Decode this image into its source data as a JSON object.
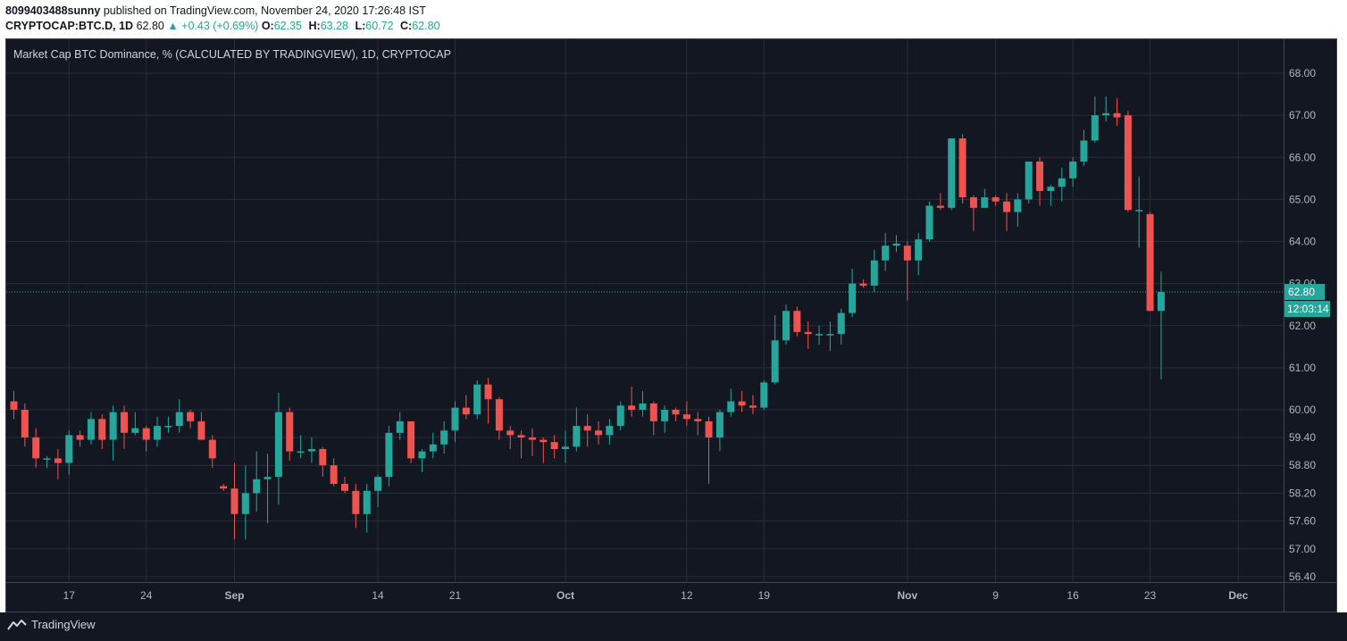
{
  "header": {
    "user": "8099403488sunny",
    "published": "published on TradingView.com, November 24, 2020 17:26:48 IST",
    "symbol": "CRYPTOCAP:BTC.D, 1D",
    "last": "62.80",
    "change": "▲ +0.43 (+0.69%)",
    "o_label": "O:",
    "o_value": "62.35",
    "h_label": "H:",
    "h_value": "63.28",
    "l_label": "L:",
    "l_value": "60.72",
    "c_label": "C:",
    "c_value": "62.80"
  },
  "chart_data": {
    "type": "candlestick",
    "title": "Market Cap BTC Dominance, % (CALCULATED BY TRADINGVIEW), 1D, CRYPTOCAP",
    "ylim": [
      56.2,
      68.3
    ],
    "y_ticks": [
      "68.00",
      "67.00",
      "66.00",
      "65.00",
      "64.00",
      "63.00",
      "62.00",
      "61.00",
      "60.00",
      "59.40",
      "58.80",
      "58.20",
      "57.60",
      "57.00",
      "56.40"
    ],
    "x_ticks": [
      {
        "label": "17",
        "index": 5
      },
      {
        "label": "24",
        "index": 12
      },
      {
        "label": "Sep",
        "index": 20
      },
      {
        "label": "14",
        "index": 33
      },
      {
        "label": "21",
        "index": 40
      },
      {
        "label": "Oct",
        "index": 50
      },
      {
        "label": "12",
        "index": 61
      },
      {
        "label": "19",
        "index": 68
      },
      {
        "label": "Nov",
        "index": 81
      },
      {
        "label": "9",
        "index": 89
      },
      {
        "label": "16",
        "index": 96
      },
      {
        "label": "23",
        "index": 103
      },
      {
        "label": "Dec",
        "index": 111
      }
    ],
    "last_price_label": "62.80",
    "countdown_label": "12:03:14",
    "up_color": "#26a69a",
    "down_color": "#ef5350",
    "grid": true,
    "ohlc": [
      [
        60.2,
        60.45,
        59.8,
        60.0
      ],
      [
        60.0,
        60.15,
        59.2,
        59.4
      ],
      [
        59.4,
        59.6,
        58.75,
        58.95
      ],
      [
        58.95,
        59.0,
        58.75,
        58.95
      ],
      [
        58.95,
        59.15,
        58.5,
        58.85
      ],
      [
        58.85,
        59.55,
        58.6,
        59.45
      ],
      [
        59.45,
        59.55,
        59.2,
        59.35
      ],
      [
        59.35,
        59.95,
        59.25,
        59.8
      ],
      [
        59.8,
        59.9,
        59.15,
        59.35
      ],
      [
        59.35,
        60.1,
        58.9,
        59.95
      ],
      [
        59.95,
        60.1,
        59.15,
        59.5
      ],
      [
        59.5,
        59.95,
        59.45,
        59.6
      ],
      [
        59.6,
        59.65,
        59.1,
        59.35
      ],
      [
        59.35,
        59.85,
        59.2,
        59.65
      ],
      [
        59.65,
        59.85,
        59.5,
        59.65
      ],
      [
        59.65,
        60.25,
        59.5,
        59.95
      ],
      [
        59.95,
        60.0,
        59.6,
        59.75
      ],
      [
        59.75,
        59.95,
        59.35,
        59.35
      ],
      [
        59.35,
        59.45,
        58.75,
        58.95
      ],
      [
        58.35,
        58.4,
        58.25,
        58.3
      ],
      [
        58.3,
        58.85,
        57.2,
        57.75
      ],
      [
        57.75,
        58.8,
        57.2,
        58.2
      ],
      [
        58.2,
        59.1,
        57.8,
        58.5
      ],
      [
        58.5,
        59.05,
        57.55,
        58.55
      ],
      [
        58.55,
        60.4,
        57.95,
        59.95
      ],
      [
        59.95,
        60.05,
        58.9,
        59.1
      ],
      [
        59.1,
        59.45,
        58.95,
        59.1
      ],
      [
        59.1,
        59.4,
        58.85,
        59.15
      ],
      [
        59.15,
        59.2,
        58.55,
        58.8
      ],
      [
        58.8,
        58.95,
        58.35,
        58.4
      ],
      [
        58.4,
        58.55,
        58.2,
        58.25
      ],
      [
        58.25,
        58.4,
        57.45,
        57.75
      ],
      [
        57.75,
        58.4,
        57.35,
        58.25
      ],
      [
        58.25,
        58.6,
        57.9,
        58.55
      ],
      [
        58.55,
        59.65,
        58.35,
        59.5
      ],
      [
        59.5,
        59.95,
        59.35,
        59.75
      ],
      [
        59.75,
        59.75,
        58.85,
        58.95
      ],
      [
        58.95,
        59.15,
        58.65,
        59.1
      ],
      [
        59.1,
        59.5,
        58.95,
        59.25
      ],
      [
        59.25,
        59.75,
        59.05,
        59.55
      ],
      [
        59.55,
        60.2,
        59.3,
        60.05
      ],
      [
        60.05,
        60.35,
        59.8,
        59.9
      ],
      [
        59.9,
        60.7,
        59.8,
        60.6
      ],
      [
        60.6,
        60.75,
        59.7,
        60.25
      ],
      [
        60.25,
        60.3,
        59.35,
        59.55
      ],
      [
        59.55,
        59.65,
        59.15,
        59.45
      ],
      [
        59.45,
        59.55,
        58.95,
        59.4
      ],
      [
        59.4,
        59.6,
        59.0,
        59.35
      ],
      [
        59.35,
        59.4,
        58.85,
        59.3
      ],
      [
        59.3,
        59.45,
        58.95,
        59.15
      ],
      [
        59.15,
        59.55,
        58.85,
        59.2
      ],
      [
        59.2,
        60.05,
        59.1,
        59.65
      ],
      [
        59.65,
        59.9,
        59.2,
        59.55
      ],
      [
        59.55,
        59.75,
        59.25,
        59.45
      ],
      [
        59.45,
        59.8,
        59.25,
        59.65
      ],
      [
        59.65,
        60.2,
        59.55,
        60.1
      ],
      [
        60.1,
        60.55,
        59.85,
        60.0
      ],
      [
        60.0,
        60.45,
        59.85,
        60.15
      ],
      [
        60.15,
        60.2,
        59.45,
        59.75
      ],
      [
        59.75,
        60.1,
        59.5,
        60.0
      ],
      [
        60.0,
        60.05,
        59.75,
        59.9
      ],
      [
        59.9,
        60.2,
        59.65,
        59.8
      ],
      [
        59.8,
        59.95,
        59.45,
        59.75
      ],
      [
        59.75,
        59.85,
        58.4,
        59.4
      ],
      [
        59.4,
        60.0,
        59.1,
        59.95
      ],
      [
        59.95,
        60.5,
        59.85,
        60.2
      ],
      [
        60.2,
        60.45,
        59.95,
        60.1
      ],
      [
        60.1,
        60.35,
        59.9,
        60.05
      ],
      [
        60.05,
        60.7,
        60.0,
        60.65
      ],
      [
        60.65,
        62.25,
        60.6,
        61.65
      ],
      [
        61.65,
        62.5,
        61.55,
        62.35
      ],
      [
        62.35,
        62.45,
        61.75,
        61.85
      ],
      [
        61.85,
        62.1,
        61.45,
        61.8
      ],
      [
        61.8,
        62.0,
        61.55,
        61.8
      ],
      [
        61.8,
        62.1,
        61.4,
        61.8
      ],
      [
        61.8,
        62.4,
        61.55,
        62.3
      ],
      [
        62.3,
        63.35,
        62.2,
        63.0
      ],
      [
        63.0,
        63.1,
        62.9,
        62.95
      ],
      [
        62.95,
        63.8,
        62.8,
        63.55
      ],
      [
        63.55,
        64.2,
        63.3,
        63.9
      ],
      [
        63.9,
        64.15,
        63.75,
        63.95
      ],
      [
        63.9,
        64.0,
        62.6,
        63.55
      ],
      [
        63.55,
        64.2,
        63.2,
        64.05
      ],
      [
        64.05,
        64.95,
        64.0,
        64.85
      ],
      [
        64.85,
        65.15,
        64.75,
        64.8
      ],
      [
        64.8,
        66.45,
        64.75,
        66.45
      ],
      [
        66.45,
        66.55,
        64.9,
        65.05
      ],
      [
        65.05,
        65.1,
        64.25,
        64.8
      ],
      [
        64.8,
        65.25,
        64.8,
        65.05
      ],
      [
        65.05,
        65.1,
        64.85,
        64.95
      ],
      [
        64.95,
        65.15,
        64.25,
        64.7
      ],
      [
        64.7,
        65.15,
        64.35,
        65.0
      ],
      [
        65.0,
        65.9,
        64.9,
        65.9
      ],
      [
        65.9,
        66.0,
        64.85,
        65.2
      ],
      [
        65.2,
        65.35,
        64.85,
        65.3
      ],
      [
        65.3,
        65.75,
        64.95,
        65.5
      ],
      [
        65.5,
        66.0,
        65.3,
        65.9
      ],
      [
        65.9,
        66.65,
        65.8,
        66.4
      ],
      [
        66.4,
        67.45,
        66.35,
        67.0
      ],
      [
        67.0,
        67.45,
        66.85,
        67.05
      ],
      [
        67.05,
        67.4,
        66.75,
        66.95
      ],
      [
        67.0,
        67.1,
        64.7,
        64.75
      ],
      [
        64.75,
        65.55,
        63.85,
        64.75
      ],
      [
        64.65,
        64.7,
        62.35,
        62.35
      ],
      [
        62.35,
        63.28,
        60.72,
        62.8
      ]
    ]
  },
  "footer": {
    "brand": "TradingView"
  }
}
